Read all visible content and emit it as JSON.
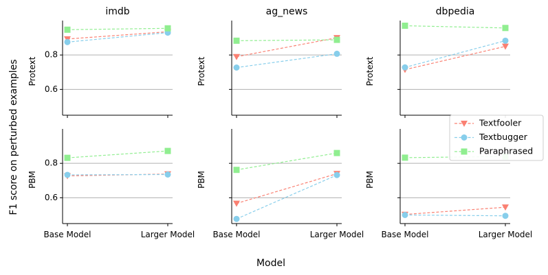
{
  "figure": {
    "ylabel": "F1 score on perturbed examples",
    "xlabel": "Model"
  },
  "chart_data": {
    "type": "line",
    "x_categories": [
      "Base Model",
      "Larger Model"
    ],
    "ylim": [
      0.45,
      1.0
    ],
    "yticks": [
      0.6,
      0.8
    ],
    "grid": "horizontal",
    "legend_position": "right",
    "legend": [
      {
        "name": "Textfooler",
        "color": "#fa8072",
        "marker": "triangle-down"
      },
      {
        "name": "Textbugger",
        "color": "#87ceeb",
        "marker": "circle"
      },
      {
        "name": "Paraphrased",
        "color": "#90ee90",
        "marker": "square"
      }
    ],
    "columns": [
      "imdb",
      "ag_news",
      "dbpedia"
    ],
    "rows": [
      "Protext",
      "PBM"
    ],
    "panels": [
      {
        "dataset": "imdb",
        "model": "Protext",
        "series": [
          {
            "name": "Textfooler",
            "values": [
              0.893,
              0.935
            ]
          },
          {
            "name": "Textbugger",
            "values": [
              0.875,
              0.93
            ]
          },
          {
            "name": "Paraphrased",
            "values": [
              0.947,
              0.955
            ]
          }
        ]
      },
      {
        "dataset": "ag_news",
        "model": "Protext",
        "series": [
          {
            "name": "Textfooler",
            "values": [
              0.79,
              0.9
            ]
          },
          {
            "name": "Textbugger",
            "values": [
              0.727,
              0.807
            ]
          },
          {
            "name": "Paraphrased",
            "values": [
              0.883,
              0.888
            ]
          }
        ]
      },
      {
        "dataset": "dbpedia",
        "model": "Protext",
        "series": [
          {
            "name": "Textfooler",
            "values": [
              0.715,
              0.85
            ]
          },
          {
            "name": "Textbugger",
            "values": [
              0.728,
              0.883
            ]
          },
          {
            "name": "Paraphrased",
            "values": [
              0.97,
              0.957
            ]
          }
        ]
      },
      {
        "dataset": "imdb",
        "model": "PBM",
        "series": [
          {
            "name": "Textfooler",
            "values": [
              0.727,
              0.738
            ]
          },
          {
            "name": "Textbugger",
            "values": [
              0.733,
              0.735
            ]
          },
          {
            "name": "Paraphrased",
            "values": [
              0.832,
              0.872
            ]
          }
        ]
      },
      {
        "dataset": "ag_news",
        "model": "PBM",
        "series": [
          {
            "name": "Textfooler",
            "values": [
              0.567,
              0.74
            ]
          },
          {
            "name": "Textbugger",
            "values": [
              0.477,
              0.732
            ]
          },
          {
            "name": "Paraphrased",
            "values": [
              0.762,
              0.86
            ]
          }
        ]
      },
      {
        "dataset": "dbpedia",
        "model": "PBM",
        "series": [
          {
            "name": "Textfooler",
            "values": [
              0.503,
              0.545
            ]
          },
          {
            "name": "Textbugger",
            "values": [
              0.5,
              0.495
            ]
          },
          {
            "name": "Paraphrased",
            "values": [
              0.833,
              0.84
            ]
          }
        ]
      }
    ]
  }
}
